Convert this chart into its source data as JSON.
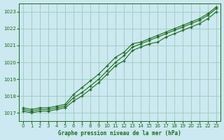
{
  "title": "Graphe pression niveau de la mer (hPa)",
  "bg_color": "#cce8f0",
  "grid_color": "#99ccbb",
  "line_color": "#1a6b1a",
  "xlim": [
    -0.5,
    23.5
  ],
  "ylim": [
    1016.5,
    1023.5
  ],
  "yticks": [
    1017,
    1018,
    1019,
    1020,
    1021,
    1022,
    1023
  ],
  "xticks": [
    0,
    1,
    2,
    3,
    4,
    5,
    6,
    7,
    8,
    9,
    10,
    11,
    12,
    13,
    14,
    15,
    16,
    17,
    18,
    19,
    20,
    21,
    22,
    23
  ],
  "series": [
    {
      "x": [
        0,
        1,
        2,
        3,
        4,
        5,
        6,
        7,
        8,
        9,
        10,
        11,
        12,
        13,
        14,
        15,
        16,
        17,
        18,
        19,
        20,
        21,
        22,
        23
      ],
      "y": [
        1017.2,
        1017.1,
        1017.2,
        1017.2,
        1017.3,
        1017.4,
        1017.9,
        1018.2,
        1018.6,
        1019.0,
        1019.5,
        1020.0,
        1020.4,
        1020.9,
        1021.1,
        1021.3,
        1021.5,
        1021.7,
        1021.9,
        1022.1,
        1022.3,
        1022.5,
        1022.8,
        1023.2
      ]
    },
    {
      "x": [
        0,
        1,
        2,
        3,
        4,
        5,
        6,
        7,
        8,
        9,
        10,
        11,
        12,
        13,
        14,
        15,
        16,
        17,
        18,
        19,
        20,
        21,
        22,
        23
      ],
      "y": [
        1017.1,
        1017.0,
        1017.1,
        1017.1,
        1017.2,
        1017.3,
        1017.7,
        1018.0,
        1018.4,
        1018.8,
        1019.3,
        1019.8,
        1020.1,
        1020.7,
        1020.9,
        1021.1,
        1021.2,
        1021.5,
        1021.7,
        1021.9,
        1022.1,
        1022.3,
        1022.6,
        1023.0
      ]
    },
    {
      "x": [
        0,
        1,
        2,
        3,
        4,
        5,
        6,
        7,
        8,
        9,
        10,
        11,
        12,
        13,
        14,
        15,
        16,
        17,
        18,
        19,
        20,
        21,
        22,
        23
      ],
      "y": [
        1017.3,
        1017.2,
        1017.3,
        1017.3,
        1017.4,
        1017.5,
        1018.1,
        1018.5,
        1018.9,
        1019.3,
        1019.8,
        1020.3,
        1020.6,
        1021.1,
        1021.2,
        1021.4,
        1021.6,
        1021.8,
        1022.0,
        1022.2,
        1022.4,
        1022.6,
        1022.9,
        1023.3
      ]
    }
  ]
}
